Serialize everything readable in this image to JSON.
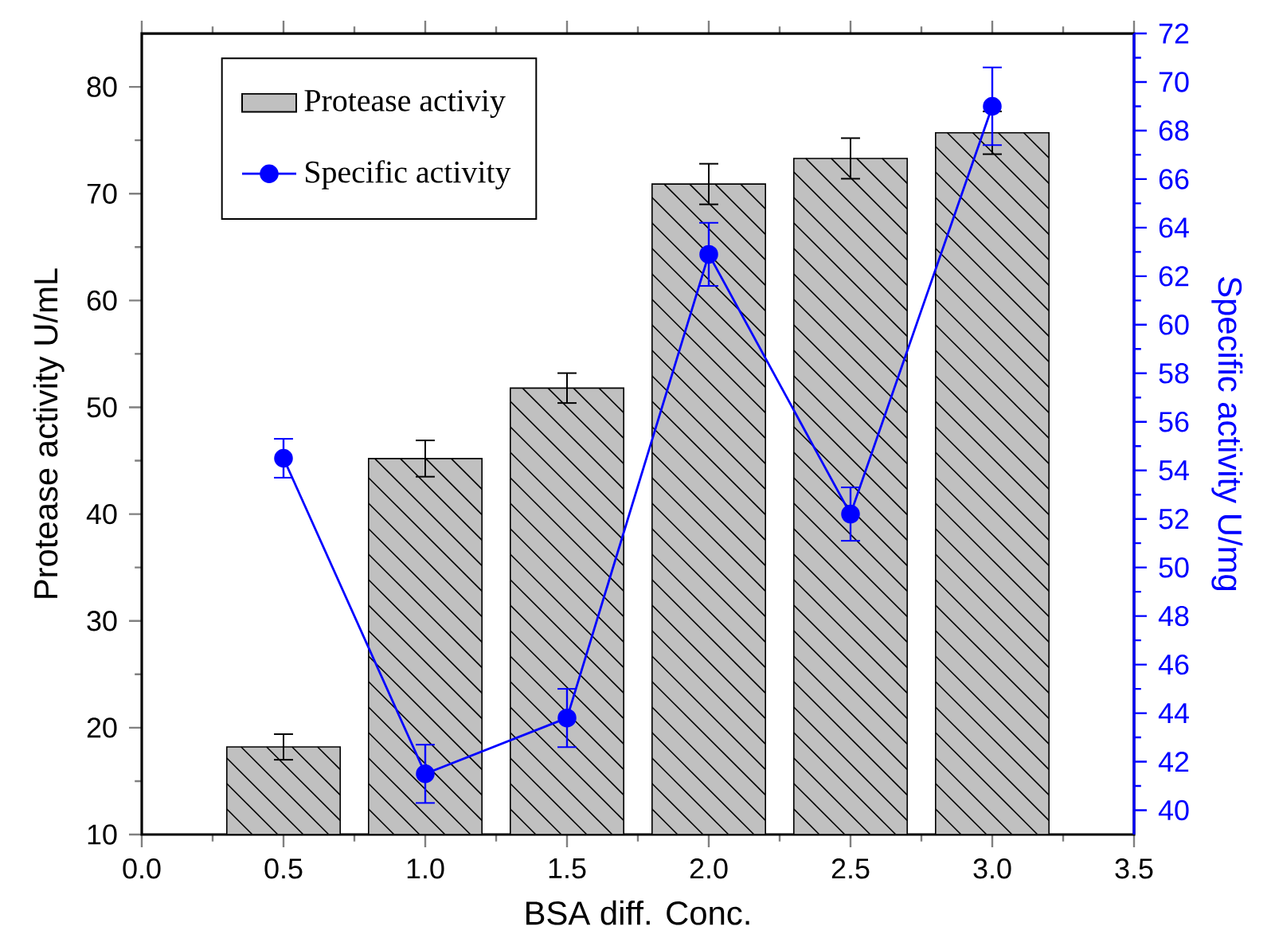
{
  "chart_data": {
    "type": "bar",
    "xlabel": "BSA diff. Conc.",
    "ylabel": "Protease activity U/mL",
    "y2label": "Specific activity U/mg",
    "xlim": [
      0,
      3.5
    ],
    "xticks": [
      {
        "value": 0,
        "label": "0.0"
      },
      0.5,
      {
        "value": 1,
        "label": "1.0"
      },
      1.5,
      {
        "value": 2,
        "label": "2.0"
      },
      2.5,
      {
        "value": 3,
        "label": "3.0"
      },
      3.5
    ],
    "ylim": [
      10,
      85
    ],
    "yticks": [
      10,
      20,
      30,
      40,
      50,
      60,
      70,
      80
    ],
    "y2lim": [
      39,
      72
    ],
    "y2ticks": [
      40,
      42,
      44,
      46,
      48,
      50,
      52,
      54,
      56,
      58,
      60,
      62,
      64,
      66,
      68,
      70,
      72
    ],
    "x": [
      0.5,
      1.0,
      1.5,
      2.0,
      2.5,
      3.0
    ],
    "series": [
      {
        "name": "Protease activiy",
        "color": "#c0c0c0",
        "values": [
          18.2,
          45.2,
          51.8,
          70.9,
          73.3,
          75.7
        ],
        "errors": [
          1.2,
          1.7,
          1.4,
          1.9,
          1.9,
          2.0
        ]
      },
      {
        "name": "Specific activity",
        "type": "line",
        "axis": "y2",
        "color": "#0000ff",
        "values": [
          54.5,
          41.5,
          43.8,
          62.9,
          52.2,
          69.0
        ],
        "errors": [
          0.8,
          1.2,
          1.2,
          1.3,
          1.1,
          1.6
        ]
      }
    ],
    "legend": "top left",
    "marker": "circle",
    "line_style": "solid",
    "grid": false
  }
}
